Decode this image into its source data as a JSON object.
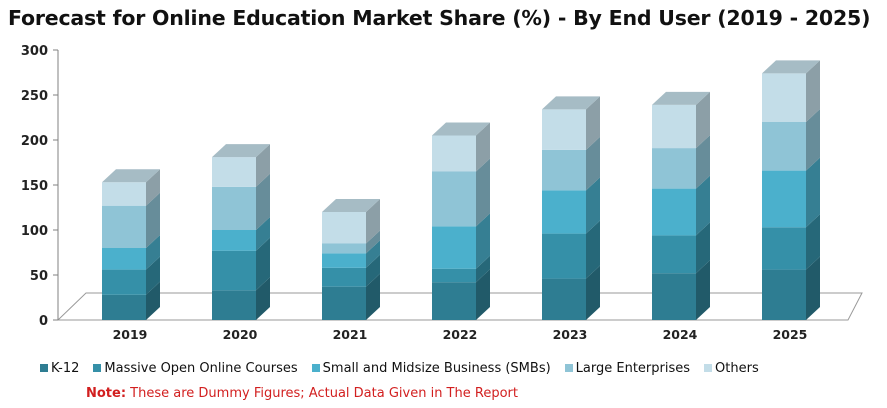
{
  "chart_data": {
    "type": "bar",
    "stacked": true,
    "three_d": true,
    "title": "Forecast for Online Education Market Share (%) - By End User (2019 - 2025)",
    "xlabel": "",
    "ylabel": "",
    "ylim": [
      0,
      300
    ],
    "yticks": [
      0,
      50,
      100,
      150,
      200,
      250,
      300
    ],
    "categories": [
      "2019",
      "2020",
      "2021",
      "2022",
      "2023",
      "2024",
      "2025"
    ],
    "series": [
      {
        "name": "K-12",
        "color": "#2e7d92",
        "values": [
          28,
          33,
          37,
          42,
          46,
          52,
          56
        ]
      },
      {
        "name": "Massive Open Online Courses",
        "color": "#3590a8",
        "values": [
          28,
          44,
          21,
          15,
          50,
          42,
          47
        ]
      },
      {
        "name": "Small and Midsize Business (SMBs)",
        "color": "#4bb0cc",
        "values": [
          24,
          23,
          16,
          47,
          48,
          52,
          63
        ]
      },
      {
        "name": "Large Enterprises",
        "color": "#8fc4d6",
        "values": [
          47,
          48,
          11,
          61,
          45,
          45,
          54
        ]
      },
      {
        "name": "Others",
        "color": "#c3dde8",
        "values": [
          26,
          33,
          35,
          40,
          45,
          48,
          54
        ]
      }
    ],
    "legend_position": "bottom",
    "grid": false
  },
  "note": {
    "label": "Note:",
    "text": " These are Dummy Figures; Actual Data Given in The Report"
  }
}
